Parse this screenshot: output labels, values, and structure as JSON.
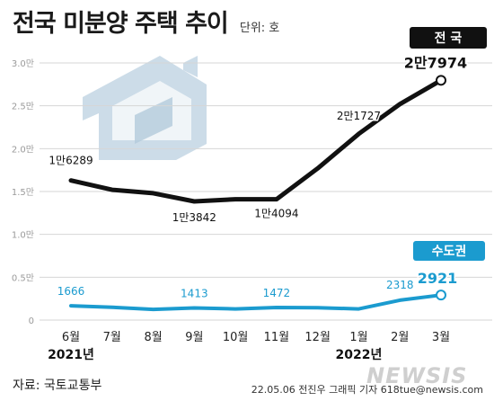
{
  "header": {
    "title": "전국 미분양 주택 추이",
    "unit": "단위: 호"
  },
  "footer": {
    "source": "자료: 국토교통부",
    "credit": "22.05.06 전진우 그래픽 기자 618tue@newsis.com",
    "watermark": "NEWSIS"
  },
  "colors": {
    "national": "#111111",
    "capital": "#1b9bcf",
    "national_badge": "#111111",
    "capital_badge": "#1b9bcf",
    "grid": "#d6d6d6",
    "icon": "#b9cfdf"
  },
  "chart_data": {
    "type": "line",
    "categories": [
      "6월",
      "7월",
      "8월",
      "9월",
      "10월",
      "11월",
      "12월",
      "1월",
      "2월",
      "3월"
    ],
    "year_labels": [
      {
        "index": 0,
        "label": "2021년"
      },
      {
        "index": 7,
        "label": "2022년"
      }
    ],
    "ylim": [
      0,
      30000
    ],
    "yticks": [
      0,
      5000,
      10000,
      15000,
      20000,
      25000,
      30000
    ],
    "ytick_labels": [
      "0",
      "0.5만",
      "1.0만",
      "1.5만",
      "2.0만",
      "2.5만",
      "3.0만"
    ],
    "grid": true,
    "series": [
      {
        "name": "전 국",
        "key": "national",
        "values": [
          16289,
          15200,
          14800,
          13842,
          14100,
          14094,
          17700,
          21727,
          25200,
          27974
        ],
        "labels": [
          {
            "index": 0,
            "text": "1만6289"
          },
          {
            "index": 3,
            "text": "1만3842"
          },
          {
            "index": 5,
            "text": "1만4094"
          },
          {
            "index": 7,
            "text": "2만1727"
          },
          {
            "index": 9,
            "text": "2만7974"
          }
        ]
      },
      {
        "name": "수도권",
        "key": "capital",
        "values": [
          1666,
          1500,
          1250,
          1413,
          1300,
          1472,
          1450,
          1300,
          2318,
          2921
        ],
        "labels": [
          {
            "index": 0,
            "text": "1666"
          },
          {
            "index": 3,
            "text": "1413"
          },
          {
            "index": 5,
            "text": "1472"
          },
          {
            "index": 8,
            "text": "2318"
          },
          {
            "index": 9,
            "text": "2921"
          }
        ]
      }
    ]
  }
}
